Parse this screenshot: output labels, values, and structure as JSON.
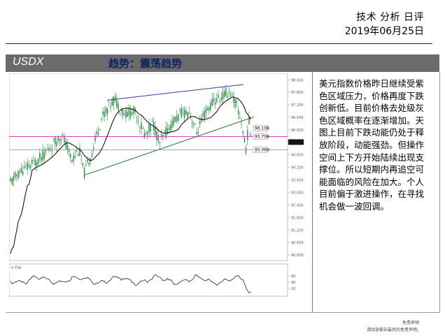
{
  "header": {
    "title": "技术 分析 日评",
    "date": "2019年06月25日"
  },
  "banner": {
    "symbol": "USDX",
    "trend": "趋势：震荡趋势"
  },
  "chart_data": {
    "type": "candlestick",
    "price_ticks": [
      "98.410",
      "97.830",
      "97.230",
      "96.630",
      "96.030",
      "95.430",
      "94.830",
      "94.230",
      "93.630",
      "93.030",
      "92.430",
      "91.830",
      "91.230",
      "90.630",
      "90.030"
    ],
    "ylim": [
      89.9,
      98.6
    ],
    "level_tags": [
      "96.108",
      "95.706",
      "95.069"
    ],
    "levels": [
      96.108,
      95.706,
      95.069
    ],
    "current_price": "95.441",
    "oscillator_label": "0.756",
    "oscillator_ticks": [
      "60",
      "40",
      "20"
    ],
    "colors": {
      "candle": "#1f8a3a",
      "moving_average": "#000000",
      "support_line": "#2e7d32",
      "resistance_line": "#3a3aa0",
      "horizontal_level": "#e040c8",
      "price_tag_bg": "#1a1a1a",
      "oscillator": "#000000"
    }
  },
  "commentary": "美元指数价格昨日继续受紫色区域压力，价格再度下跌创新低。目前价格去处级灰色区域概率在逐渐增加。天图上目前下跌动能仍处于释放阶段，动能强劲。但操作空间上下方开始陆续出现支撑位。所以短期内再追空可能面临的风险在加大。个人目前偏于激进操作，在寻找机会做一波回调。",
  "disclaimer": {
    "line1": "免责声明",
    "line2": "请阅读报告最后的免责声明。"
  }
}
